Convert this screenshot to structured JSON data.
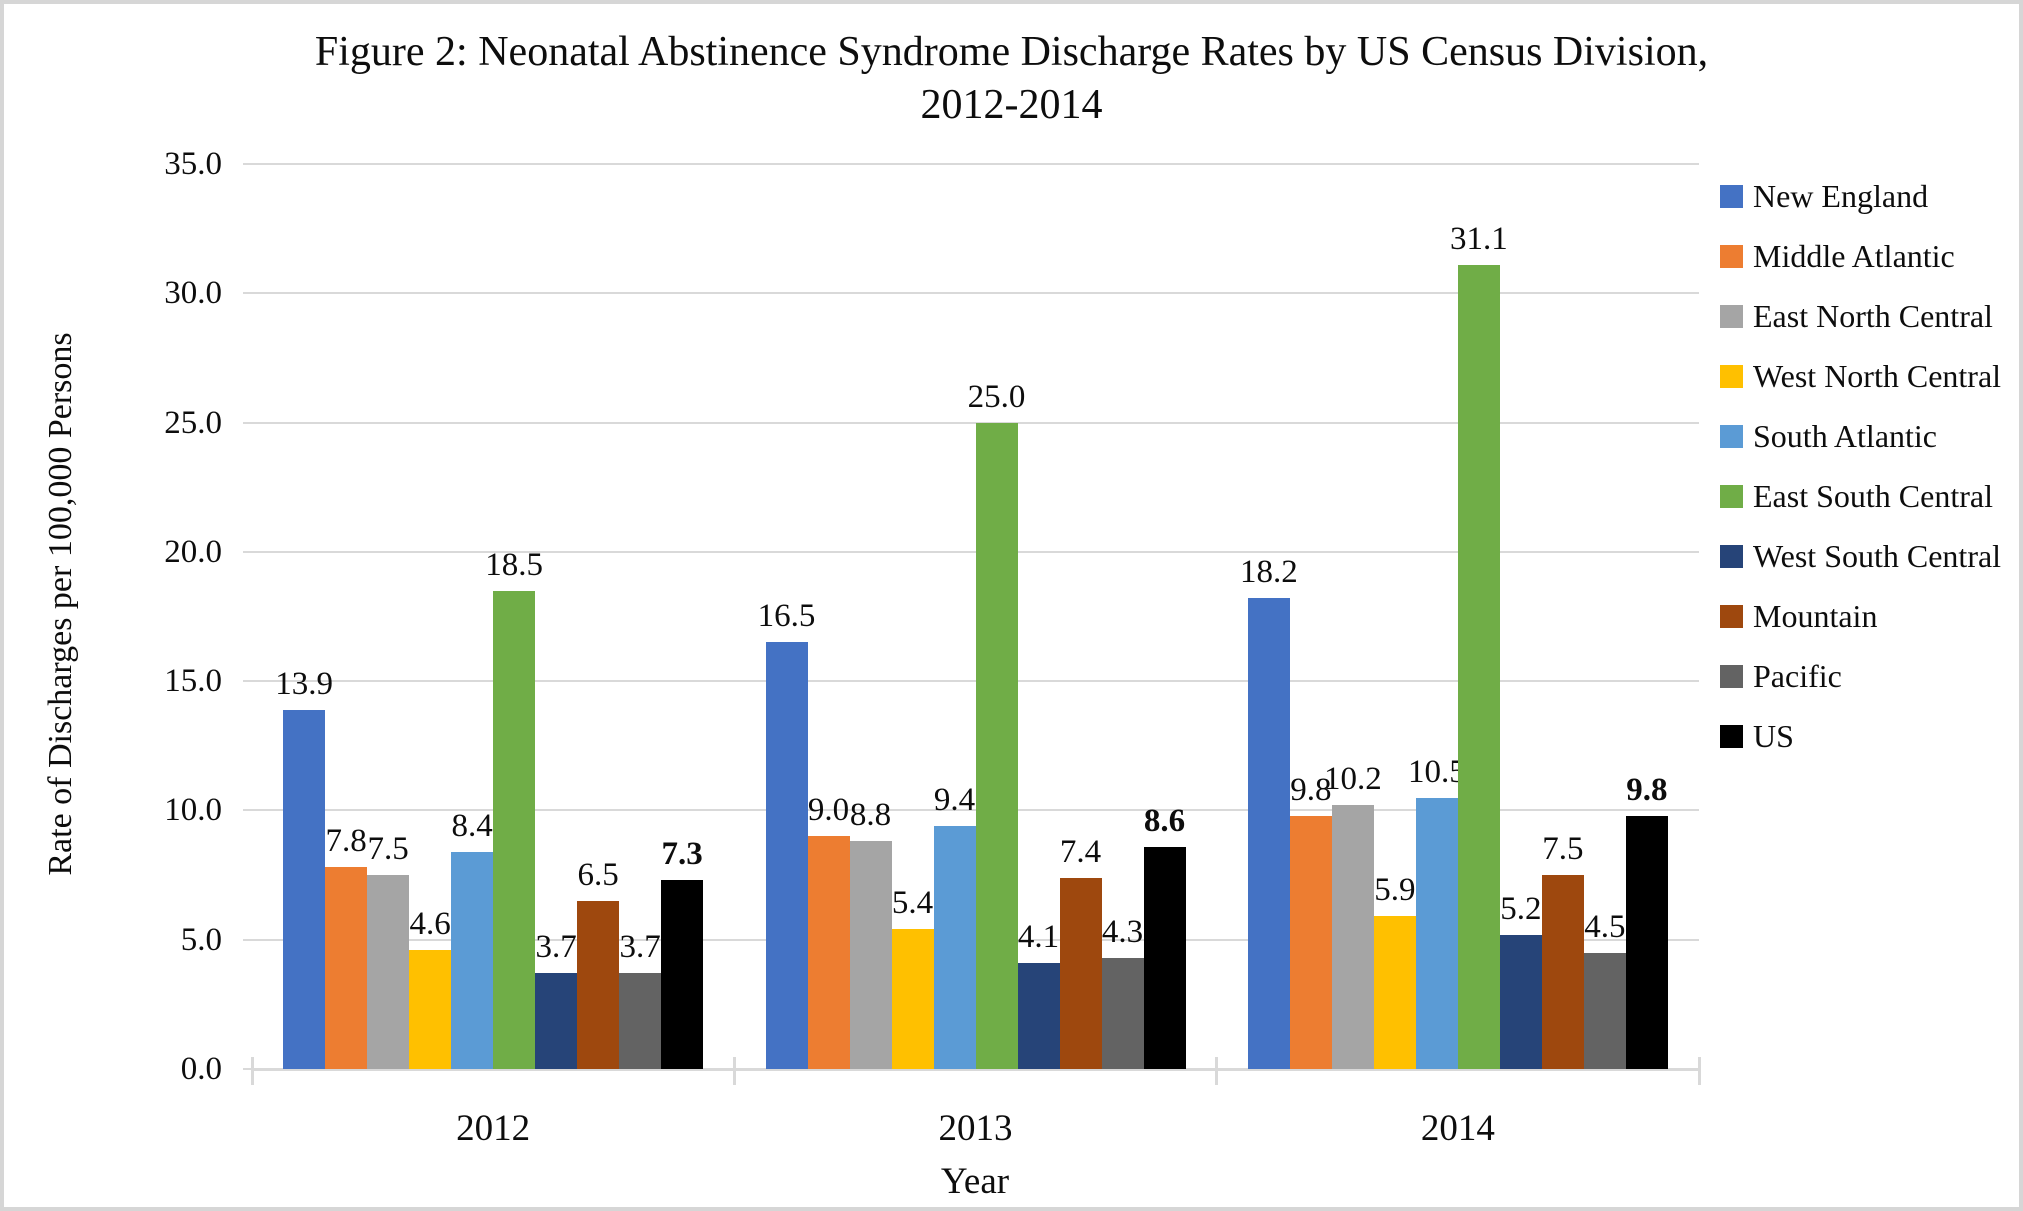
{
  "figure": {
    "title_line1": "Figure 2: Neonatal Abstinence Syndrome Discharge Rates by US Census Division,",
    "title_line2": "2012-2014"
  },
  "chart_data": {
    "type": "bar",
    "title": "Figure 2: Neonatal Abstinence Syndrome Discharge Rates by US Census Division, 2012-2014",
    "xlabel": "Year",
    "ylabel": "Rate of Discharges per 100,000 Persons",
    "categories": [
      "2012",
      "2013",
      "2014"
    ],
    "series": [
      {
        "name": "New England",
        "color": "#4472C4",
        "values": [
          13.9,
          16.5,
          18.2
        ]
      },
      {
        "name": "Middle Atlantic",
        "color": "#ED7D31",
        "values": [
          7.8,
          9.0,
          9.8
        ]
      },
      {
        "name": "East North Central",
        "color": "#A5A5A5",
        "values": [
          7.5,
          8.8,
          10.2
        ]
      },
      {
        "name": "West North Central",
        "color": "#FFC000",
        "values": [
          4.6,
          5.4,
          5.9
        ]
      },
      {
        "name": "South Atlantic",
        "color": "#5B9BD5",
        "values": [
          8.4,
          9.4,
          10.5
        ]
      },
      {
        "name": "East South Central",
        "color": "#70AD47",
        "values": [
          18.5,
          25.0,
          31.1
        ]
      },
      {
        "name": "West South Central",
        "color": "#264478",
        "values": [
          3.7,
          4.1,
          5.2
        ]
      },
      {
        "name": "Mountain",
        "color": "#9E480E",
        "values": [
          6.5,
          7.4,
          7.5
        ]
      },
      {
        "name": "Pacific",
        "color": "#636363",
        "values": [
          3.7,
          4.3,
          4.5
        ]
      },
      {
        "name": "US",
        "color": "#000000",
        "values": [
          7.3,
          8.6,
          9.8
        ],
        "bold_labels": true
      }
    ],
    "ylim": [
      0,
      35
    ],
    "ytick_step": 5,
    "ytick_labels": [
      "0.0",
      "5.0",
      "10.0",
      "15.0",
      "20.0",
      "25.0",
      "30.0",
      "35.0"
    ],
    "grid": true,
    "data_labels": true,
    "data_label_decimals": 1,
    "legend_position": "right",
    "gridline_color": "#D9D9D9"
  }
}
